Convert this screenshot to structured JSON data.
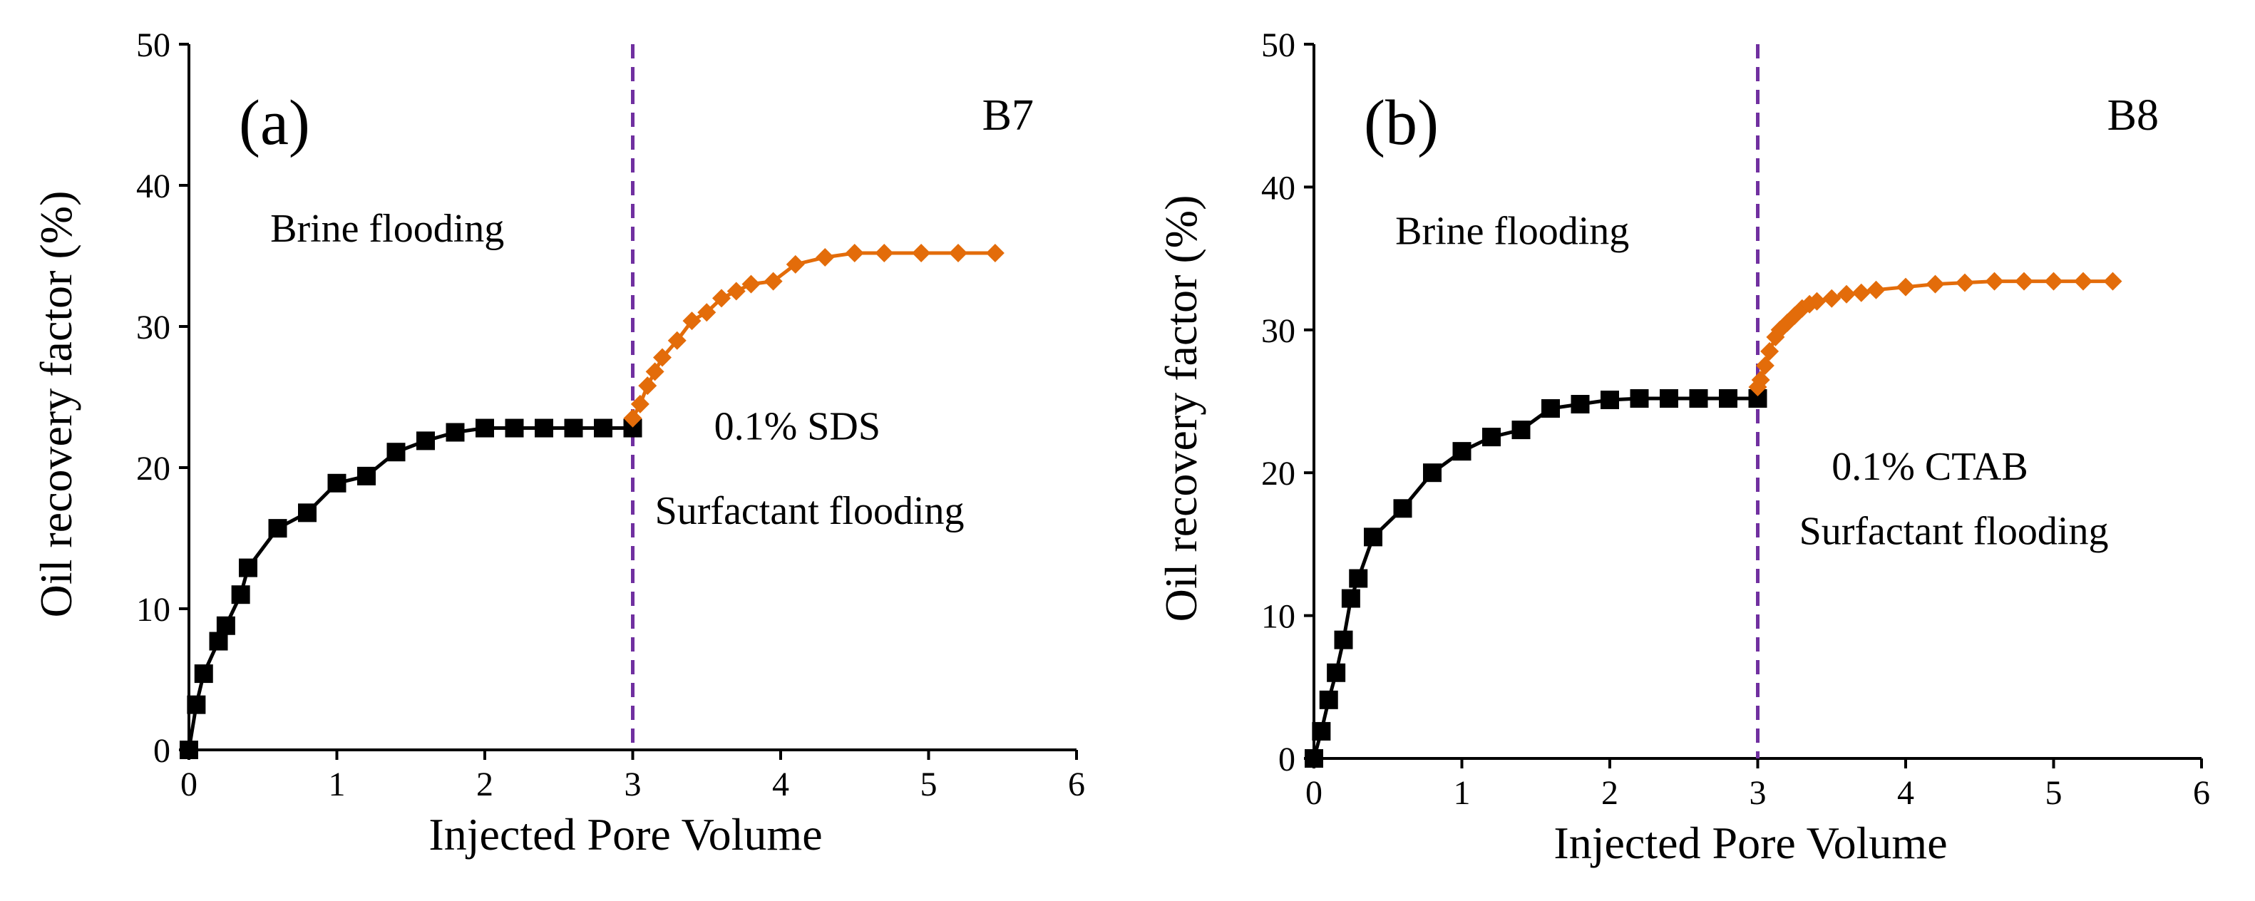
{
  "chart_data": [
    {
      "type": "line",
      "panel_label": "(a)",
      "sample_label": "B7",
      "xlabel": "Injected Pore Volume",
      "ylabel": "Oil recovery factor (%)",
      "xlim": [
        0,
        6
      ],
      "ylim": [
        0,
        50
      ],
      "xticks": [
        "0",
        "1",
        "2",
        "3",
        "4",
        "5",
        "6"
      ],
      "yticks": [
        "0",
        "10",
        "20",
        "30",
        "40",
        "50"
      ],
      "grid": false,
      "divider_x": 3,
      "annotations": [
        {
          "text": "Brine flooding",
          "x": 0.55,
          "y": 36
        },
        {
          "text": "0.1% SDS",
          "x": 3.55,
          "y": 22
        },
        {
          "text": "Surfactant flooding",
          "x": 3.15,
          "y": 16
        }
      ],
      "series": [
        {
          "color": "#000000",
          "marker": "square",
          "x": [
            0,
            0.05,
            0.1,
            0.2,
            0.25,
            0.35,
            0.4,
            0.6,
            0.8,
            1.0,
            1.2,
            1.4,
            1.6,
            1.8,
            2.0,
            2.2,
            2.4,
            2.6,
            2.8,
            3.0
          ],
          "y": [
            0,
            3.2,
            5.4,
            7.7,
            8.8,
            11.0,
            12.9,
            15.7,
            16.8,
            18.9,
            19.4,
            21.1,
            21.9,
            22.5,
            22.8,
            22.8,
            22.8,
            22.8,
            22.8,
            22.8
          ]
        },
        {
          "color": "#E36C0A",
          "marker": "diamond",
          "x": [
            3.0,
            3.05,
            3.1,
            3.15,
            3.2,
            3.3,
            3.4,
            3.5,
            3.6,
            3.7,
            3.8,
            3.95,
            4.1,
            4.3,
            4.5,
            4.7,
            4.95,
            5.2,
            5.45
          ],
          "y": [
            23.5,
            24.5,
            25.8,
            26.8,
            27.8,
            29.0,
            30.4,
            31.0,
            32.0,
            32.5,
            33.0,
            33.2,
            34.4,
            34.9,
            35.2,
            35.2,
            35.2,
            35.2,
            35.2
          ]
        }
      ]
    },
    {
      "type": "line",
      "panel_label": "(b)",
      "sample_label": "B8",
      "xlabel": "Injected Pore Volume",
      "ylabel": "Oil recovery factor (%)",
      "xlim": [
        0,
        6
      ],
      "ylim": [
        0,
        50
      ],
      "xticks": [
        "0",
        "1",
        "2",
        "3",
        "4",
        "5",
        "6"
      ],
      "yticks": [
        "0",
        "10",
        "20",
        "30",
        "40",
        "50"
      ],
      "grid": false,
      "divider_x": 3,
      "annotations": [
        {
          "text": "Brine flooding",
          "x": 0.55,
          "y": 36
        },
        {
          "text": "0.1% CTAB",
          "x": 3.5,
          "y": 19.5
        },
        {
          "text": "Surfactant flooding",
          "x": 3.28,
          "y": 15
        }
      ],
      "series": [
        {
          "color": "#000000",
          "marker": "square",
          "x": [
            0,
            0.05,
            0.1,
            0.15,
            0.2,
            0.25,
            0.3,
            0.4,
            0.6,
            0.8,
            1.0,
            1.2,
            1.4,
            1.6,
            1.8,
            2.0,
            2.2,
            2.4,
            2.6,
            2.8,
            3.0
          ],
          "y": [
            0,
            1.9,
            4.1,
            6.0,
            8.3,
            11.2,
            12.6,
            15.5,
            17.5,
            20.0,
            21.5,
            22.5,
            23.0,
            24.5,
            24.8,
            25.1,
            25.2,
            25.2,
            25.2,
            25.2,
            25.2
          ]
        },
        {
          "color": "#E36C0A",
          "marker": "diamond",
          "x": [
            3.0,
            3.02,
            3.05,
            3.08,
            3.12,
            3.15,
            3.2,
            3.25,
            3.3,
            3.35,
            3.4,
            3.5,
            3.6,
            3.7,
            3.8,
            4.0,
            4.2,
            4.4,
            4.6,
            4.8,
            5.0,
            5.2,
            5.4
          ],
          "y": [
            26.0,
            26.5,
            27.5,
            28.5,
            29.5,
            30.0,
            30.5,
            31.0,
            31.5,
            31.8,
            32.0,
            32.2,
            32.5,
            32.6,
            32.8,
            33.0,
            33.2,
            33.3,
            33.4,
            33.4,
            33.4,
            33.4,
            33.4
          ]
        }
      ]
    }
  ],
  "styles": {
    "divider_color": "#7030A0"
  }
}
